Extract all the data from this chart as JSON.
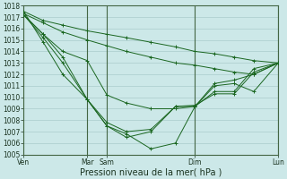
{
  "xlabel": "Pression niveau de la mer( hPa )",
  "bg_color": "#cce8e8",
  "grid_color": "#aacccc",
  "line_color": "#1a6620",
  "ylim": [
    1005,
    1018
  ],
  "yticks": [
    1005,
    1006,
    1007,
    1008,
    1009,
    1010,
    1011,
    1012,
    1013,
    1014,
    1015,
    1016,
    1017,
    1018
  ],
  "xlim": [
    0,
    52
  ],
  "xtick_positions": [
    0,
    13,
    17,
    35,
    52
  ],
  "xtick_labels": [
    "Ven",
    "Mar",
    "Sam",
    "Dim",
    "Lun"
  ],
  "vlines": [
    0,
    13,
    17,
    35,
    52
  ],
  "lines": [
    {
      "x": [
        0,
        4,
        8,
        13,
        17,
        21,
        26,
        31,
        35,
        39,
        43,
        47,
        52
      ],
      "y": [
        1017.5,
        1016.7,
        1016.3,
        1015.8,
        1015.5,
        1015.2,
        1014.8,
        1014.4,
        1014.0,
        1013.8,
        1013.5,
        1013.2,
        1013.0
      ]
    },
    {
      "x": [
        0,
        4,
        8,
        13,
        17,
        21,
        26,
        31,
        35,
        39,
        43,
        47,
        52
      ],
      "y": [
        1017.3,
        1016.5,
        1015.7,
        1015.0,
        1014.5,
        1014.0,
        1013.5,
        1013.0,
        1012.8,
        1012.5,
        1012.2,
        1012.0,
        1013.0
      ]
    },
    {
      "x": [
        0,
        4,
        8,
        13,
        17,
        21,
        26,
        31,
        35,
        39,
        43,
        47,
        52
      ],
      "y": [
        1017.2,
        1015.5,
        1014.0,
        1013.2,
        1010.2,
        1009.5,
        1009.0,
        1009.0,
        1009.2,
        1011.2,
        1011.5,
        1012.0,
        1013.0
      ]
    },
    {
      "x": [
        0,
        4,
        8,
        13,
        17,
        21,
        26,
        31,
        35,
        39,
        43,
        47,
        52
      ],
      "y": [
        1017.2,
        1015.5,
        1013.5,
        1009.8,
        1007.8,
        1007.0,
        1007.2,
        1009.2,
        1009.2,
        1010.5,
        1010.5,
        1012.5,
        1013.0
      ]
    },
    {
      "x": [
        0,
        4,
        8,
        13,
        17,
        21,
        26,
        31,
        35,
        39,
        43,
        47,
        52
      ],
      "y": [
        1017.2,
        1015.2,
        1013.0,
        1009.8,
        1007.5,
        1006.5,
        1007.0,
        1009.2,
        1009.3,
        1010.3,
        1010.3,
        1012.2,
        1013.0
      ]
    },
    {
      "x": [
        0,
        4,
        8,
        13,
        17,
        21,
        26,
        31,
        35,
        39,
        43,
        47,
        52
      ],
      "y": [
        1017.5,
        1014.8,
        1012.0,
        1009.8,
        1007.5,
        1006.8,
        1005.5,
        1006.0,
        1009.2,
        1011.0,
        1011.2,
        1010.5,
        1013.0
      ]
    }
  ]
}
